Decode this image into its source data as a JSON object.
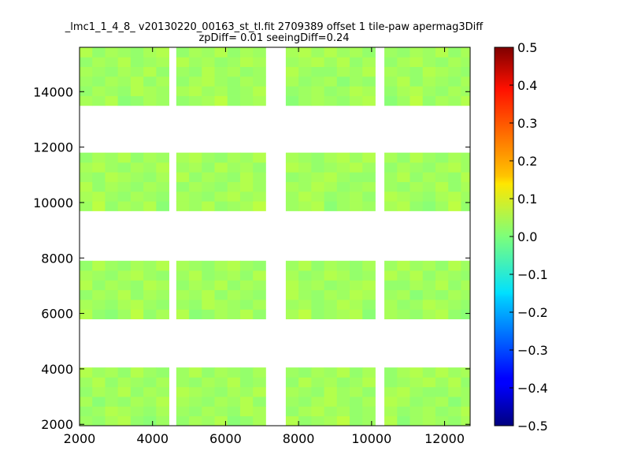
{
  "chart_data": {
    "type": "heatmap",
    "title_lines": [
      "_lmc1_1_4_8_ v20130220_00163_st_tl.fit 2709389 offset 1 tile-paw apermag3Diff",
      "zpDiff= 0.01 seeingDiff=0.24"
    ],
    "xlabel": "",
    "ylabel": "",
    "xlim": [
      2000,
      12700
    ],
    "ylim": [
      1950,
      15600
    ],
    "x_ticks": [
      2000,
      4000,
      6000,
      8000,
      10000,
      12000
    ],
    "y_ticks": [
      2000,
      4000,
      6000,
      8000,
      10000,
      12000,
      14000
    ],
    "x_tick_labels": [
      "2000",
      "4000",
      "6000",
      "8000",
      "10000",
      "12000"
    ],
    "y_tick_labels": [
      "2000",
      "4000",
      "6000",
      "8000",
      "10000",
      "12000",
      "14000"
    ],
    "colormap": "jet",
    "colorbar": {
      "range": [
        -0.5,
        0.5
      ],
      "ticks": [
        0.5,
        0.4,
        0.3,
        0.2,
        0.1,
        0.0,
        -0.1,
        -0.2,
        -0.3,
        -0.4,
        -0.5
      ],
      "tick_labels": [
        "0.5",
        "0.4",
        "0.3",
        "0.2",
        "0.1",
        "0.0",
        "−0.1",
        "−0.2",
        "−0.3",
        "−0.4",
        "−0.5"
      ]
    },
    "cell_size": [
      350,
      350
    ],
    "columns": [
      [
        2000,
        4300
      ],
      [
        4650,
        6950
      ],
      [
        7650,
        9950
      ],
      [
        10350,
        12750
      ]
    ],
    "rows": [
      [
        1950,
        4050
      ],
      [
        5800,
        7900
      ],
      [
        9700,
        11800
      ],
      [
        13500,
        15600
      ]
    ],
    "values": [
      [
        0.03,
        0.02,
        0.04,
        0.05,
        0.02,
        0.01,
        0.03,
        0.06,
        0.02,
        0.04,
        0.03,
        0.05,
        0.01,
        0.02,
        0.04,
        0.03,
        0.05,
        0.02,
        0.03,
        0.04,
        0.06,
        0.02,
        0.03,
        0.04,
        0.05,
        0.01,
        0.03,
        0.04
      ],
      [
        0.02,
        0.03,
        0.05,
        0.04,
        0.03,
        0.02,
        0.04,
        0.05,
        0.03,
        0.02,
        0.04,
        0.03,
        0.02,
        0.05,
        0.04,
        0.03,
        0.02,
        0.04,
        0.05,
        0.03,
        0.04,
        0.02,
        0.03,
        0.05,
        0.04,
        0.02,
        0.03,
        0.04
      ],
      [
        0.04,
        0.01,
        0.03,
        0.02,
        0.04,
        0.03,
        0.05,
        0.02,
        0.04,
        0.03,
        0.02,
        0.04,
        0.03,
        0.05,
        0.02,
        0.04,
        0.03,
        0.02,
        0.04,
        0.05,
        0.03,
        0.02,
        0.04,
        0.03,
        0.05,
        0.04,
        0.02,
        0.03
      ],
      [
        0.02,
        0.04,
        0.03,
        0.05,
        0.02,
        0.04,
        0.03,
        0.02,
        0.05,
        0.04,
        0.03,
        0.02,
        0.04,
        0.03,
        0.05,
        0.02,
        0.04,
        0.03,
        0.02,
        0.05,
        0.03,
        0.04,
        0.02,
        0.03,
        0.04,
        0.05,
        0.03,
        0.02
      ],
      [
        0.03,
        0.05,
        0.02,
        0.04,
        0.03,
        0.02,
        0.04,
        0.05,
        0.03,
        0.02,
        0.04,
        0.03,
        0.05,
        0.02,
        0.03,
        0.04,
        0.02,
        0.05,
        0.03,
        0.04,
        0.02,
        0.03,
        0.05,
        0.04,
        0.02,
        0.03,
        0.04,
        0.05
      ],
      [
        0.05,
        0.03,
        0.04,
        0.02,
        0.05,
        0.03,
        0.02,
        0.04,
        0.03,
        0.05,
        0.02,
        0.04,
        0.03,
        0.02,
        0.04,
        0.05,
        0.03,
        0.02,
        0.04,
        0.03,
        0.05,
        0.02,
        0.04,
        0.03,
        0.02,
        0.04,
        0.05,
        0.03
      ]
    ]
  }
}
